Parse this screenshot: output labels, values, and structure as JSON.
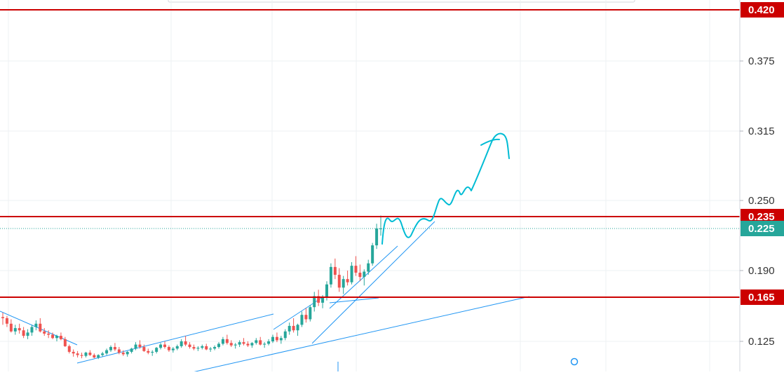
{
  "chart_data": {
    "type": "candlestick",
    "y_axis": {
      "position": "right",
      "tick_labels": [
        "0.375",
        "0.315",
        "0.250",
        "0.190",
        "0.125"
      ],
      "range": [
        0.105,
        0.425
      ]
    },
    "grid": true,
    "colors": {
      "up": "#26a69a",
      "down": "#ef5350",
      "level_line": "#cc0000",
      "trendline": "#2196f3",
      "projection": "#00bcd4",
      "price_tag": "#26a69a",
      "grid": "#eef0f3"
    },
    "horizontal_levels": [
      {
        "label": "0.420",
        "value": 0.42
      },
      {
        "label": "0.235",
        "value": 0.235
      },
      {
        "label": "0.165",
        "value": 0.165
      }
    ],
    "last_price": {
      "label": "0.225",
      "value": 0.225
    },
    "candles": [
      [
        0.147,
        0.151,
        0.14,
        0.146
      ],
      [
        0.146,
        0.148,
        0.138,
        0.141
      ],
      [
        0.141,
        0.145,
        0.133,
        0.134
      ],
      [
        0.134,
        0.14,
        0.131,
        0.137
      ],
      [
        0.137,
        0.141,
        0.132,
        0.135
      ],
      [
        0.135,
        0.138,
        0.128,
        0.13
      ],
      [
        0.13,
        0.136,
        0.127,
        0.133
      ],
      [
        0.133,
        0.14,
        0.13,
        0.138
      ],
      [
        0.138,
        0.144,
        0.135,
        0.141
      ],
      [
        0.141,
        0.146,
        0.133,
        0.134
      ],
      [
        0.134,
        0.137,
        0.13,
        0.132
      ],
      [
        0.132,
        0.135,
        0.128,
        0.131
      ],
      [
        0.131,
        0.133,
        0.127,
        0.128
      ],
      [
        0.128,
        0.131,
        0.125,
        0.13
      ],
      [
        0.13,
        0.133,
        0.126,
        0.127
      ],
      [
        0.127,
        0.129,
        0.118,
        0.119
      ],
      [
        0.119,
        0.121,
        0.11,
        0.112
      ],
      [
        0.112,
        0.115,
        0.106,
        0.11
      ],
      [
        0.11,
        0.113,
        0.105,
        0.108
      ],
      [
        0.108,
        0.111,
        0.104,
        0.107
      ],
      [
        0.107,
        0.112,
        0.105,
        0.111
      ],
      [
        0.111,
        0.114,
        0.107,
        0.108
      ],
      [
        0.108,
        0.11,
        0.104,
        0.105
      ],
      [
        0.105,
        0.109,
        0.103,
        0.108
      ],
      [
        0.108,
        0.112,
        0.106,
        0.11
      ],
      [
        0.11,
        0.116,
        0.108,
        0.114
      ],
      [
        0.114,
        0.12,
        0.112,
        0.118
      ],
      [
        0.118,
        0.123,
        0.113,
        0.115
      ],
      [
        0.115,
        0.118,
        0.109,
        0.111
      ],
      [
        0.111,
        0.114,
        0.107,
        0.109
      ],
      [
        0.109,
        0.113,
        0.106,
        0.112
      ],
      [
        0.112,
        0.117,
        0.11,
        0.116
      ],
      [
        0.116,
        0.124,
        0.114,
        0.121
      ],
      [
        0.121,
        0.126,
        0.116,
        0.118
      ],
      [
        0.118,
        0.121,
        0.112,
        0.113
      ],
      [
        0.113,
        0.116,
        0.109,
        0.111
      ],
      [
        0.111,
        0.114,
        0.107,
        0.112
      ],
      [
        0.112,
        0.118,
        0.11,
        0.117
      ],
      [
        0.117,
        0.123,
        0.115,
        0.121
      ],
      [
        0.121,
        0.125,
        0.116,
        0.118
      ],
      [
        0.118,
        0.12,
        0.112,
        0.114
      ],
      [
        0.114,
        0.118,
        0.111,
        0.116
      ],
      [
        0.116,
        0.121,
        0.114,
        0.119
      ],
      [
        0.119,
        0.127,
        0.117,
        0.125
      ],
      [
        0.125,
        0.13,
        0.119,
        0.121
      ],
      [
        0.121,
        0.124,
        0.116,
        0.118
      ],
      [
        0.118,
        0.121,
        0.114,
        0.116
      ],
      [
        0.116,
        0.119,
        0.113,
        0.117
      ],
      [
        0.117,
        0.121,
        0.115,
        0.119
      ],
      [
        0.119,
        0.122,
        0.114,
        0.115
      ],
      [
        0.115,
        0.118,
        0.112,
        0.116
      ],
      [
        0.116,
        0.12,
        0.114,
        0.118
      ],
      [
        0.118,
        0.124,
        0.116,
        0.122
      ],
      [
        0.122,
        0.129,
        0.12,
        0.127
      ],
      [
        0.127,
        0.131,
        0.121,
        0.123
      ],
      [
        0.123,
        0.126,
        0.118,
        0.12
      ],
      [
        0.12,
        0.123,
        0.116,
        0.121
      ],
      [
        0.121,
        0.126,
        0.118,
        0.124
      ],
      [
        0.124,
        0.128,
        0.12,
        0.122
      ],
      [
        0.122,
        0.125,
        0.118,
        0.12
      ],
      [
        0.12,
        0.124,
        0.117,
        0.123
      ],
      [
        0.123,
        0.128,
        0.121,
        0.126
      ],
      [
        0.126,
        0.129,
        0.12,
        0.121
      ],
      [
        0.121,
        0.124,
        0.117,
        0.122
      ],
      [
        0.122,
        0.127,
        0.12,
        0.125
      ],
      [
        0.125,
        0.131,
        0.123,
        0.129
      ],
      [
        0.129,
        0.133,
        0.124,
        0.126
      ],
      [
        0.126,
        0.13,
        0.122,
        0.128
      ],
      [
        0.128,
        0.136,
        0.126,
        0.134
      ],
      [
        0.134,
        0.142,
        0.131,
        0.139
      ],
      [
        0.139,
        0.146,
        0.133,
        0.135
      ],
      [
        0.135,
        0.141,
        0.13,
        0.14
      ],
      [
        0.14,
        0.152,
        0.138,
        0.149
      ],
      [
        0.149,
        0.155,
        0.142,
        0.145
      ],
      [
        0.145,
        0.158,
        0.143,
        0.156
      ],
      [
        0.156,
        0.17,
        0.152,
        0.166
      ],
      [
        0.166,
        0.172,
        0.157,
        0.16
      ],
      [
        0.16,
        0.167,
        0.155,
        0.165
      ],
      [
        0.165,
        0.18,
        0.162,
        0.177
      ],
      [
        0.177,
        0.196,
        0.174,
        0.193
      ],
      [
        0.193,
        0.2,
        0.182,
        0.186
      ],
      [
        0.186,
        0.192,
        0.17,
        0.174
      ],
      [
        0.174,
        0.185,
        0.168,
        0.182
      ],
      [
        0.182,
        0.19,
        0.176,
        0.179
      ],
      [
        0.179,
        0.197,
        0.177,
        0.194
      ],
      [
        0.194,
        0.202,
        0.185,
        0.188
      ],
      [
        0.188,
        0.195,
        0.18,
        0.184
      ],
      [
        0.184,
        0.191,
        0.176,
        0.189
      ],
      [
        0.189,
        0.199,
        0.186,
        0.196
      ],
      [
        0.196,
        0.213,
        0.194,
        0.211
      ],
      [
        0.211,
        0.229,
        0.208,
        0.225
      ],
      [
        0.225,
        0.236,
        0.219,
        0.225
      ]
    ]
  }
}
